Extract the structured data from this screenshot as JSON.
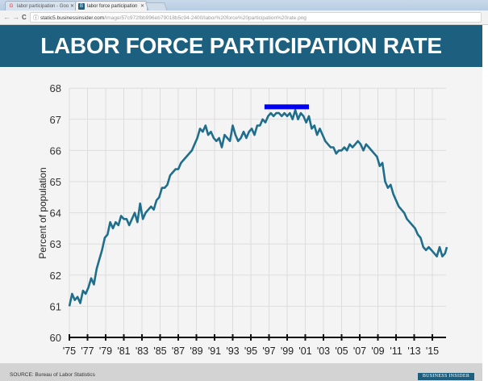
{
  "browser": {
    "tabs": [
      {
        "label": "labor participation - Goo",
        "favicon": "google-icon",
        "active": false
      },
      {
        "label": "labor force participation",
        "favicon": "bi-icon",
        "active": true
      }
    ],
    "address": {
      "host": "static5.businessinsider.com",
      "path": "/image/57c972fbb996eb79018b5c94-2400/labor%20force%20participation%20rate.png"
    },
    "nav": {
      "back": "←",
      "forward": "→",
      "reload": "C",
      "info": "ⓘ"
    }
  },
  "header": {
    "title": "LABOR FORCE PARTICIPATION RATE",
    "bg_color": "#1c5f7e"
  },
  "footer": {
    "source": "SOURCE: Bureau of Labor Statistics",
    "logo": "BUSINESS INSIDER"
  },
  "colors": {
    "line": "#1f6e8c",
    "highlight": "#0000ee",
    "grid": "#dddddd",
    "axis": "#111111"
  },
  "chart_data": {
    "type": "line",
    "title": "LABOR FORCE PARTICIPATION RATE",
    "xlabel": "",
    "ylabel": "Percent of population",
    "ylim": [
      60,
      68
    ],
    "xlim": [
      1975,
      2016.6
    ],
    "yticks": [
      "60",
      "61",
      "62",
      "63",
      "64",
      "65",
      "66",
      "67",
      "68"
    ],
    "xticks": [
      "'75",
      "'77",
      "'79",
      "'81",
      "'83",
      "'85",
      "'87",
      "'89",
      "'91",
      "'93",
      "'95",
      "'97",
      "'99",
      "'01",
      "'03",
      "'05",
      "'07",
      "'09",
      "'11",
      "'13",
      "'15"
    ],
    "grid": true,
    "annotation": {
      "type": "highlight-bar",
      "x_start": 1996.5,
      "x_end": 2001.4,
      "y": 67.4,
      "color": "#0000ee"
    },
    "series": [
      {
        "name": "Labor force participation rate",
        "x": [
          1975.0,
          1975.3,
          1975.6,
          1975.9,
          1976.2,
          1976.5,
          1976.8,
          1977.1,
          1977.4,
          1977.7,
          1978.0,
          1978.3,
          1978.6,
          1978.9,
          1979.2,
          1979.5,
          1979.8,
          1980.1,
          1980.4,
          1980.7,
          1981.0,
          1981.3,
          1981.6,
          1981.9,
          1982.2,
          1982.5,
          1982.8,
          1983.1,
          1983.4,
          1983.7,
          1984.0,
          1984.3,
          1984.6,
          1984.9,
          1985.2,
          1985.5,
          1985.8,
          1986.1,
          1986.4,
          1986.7,
          1987.0,
          1987.3,
          1987.6,
          1987.9,
          1988.2,
          1988.5,
          1988.8,
          1989.1,
          1989.4,
          1989.7,
          1990.0,
          1990.3,
          1990.6,
          1990.9,
          1991.2,
          1991.5,
          1991.8,
          1992.1,
          1992.4,
          1992.7,
          1993.0,
          1993.3,
          1993.6,
          1993.9,
          1994.2,
          1994.5,
          1994.8,
          1995.1,
          1995.4,
          1995.7,
          1996.0,
          1996.3,
          1996.6,
          1996.9,
          1997.2,
          1997.5,
          1997.8,
          1998.1,
          1998.4,
          1998.7,
          1999.0,
          1999.3,
          1999.6,
          1999.9,
          2000.2,
          2000.5,
          2000.8,
          2001.1,
          2001.4,
          2001.7,
          2002.0,
          2002.3,
          2002.6,
          2002.9,
          2003.2,
          2003.5,
          2003.8,
          2004.1,
          2004.4,
          2004.7,
          2005.0,
          2005.3,
          2005.6,
          2005.9,
          2006.2,
          2006.5,
          2006.8,
          2007.1,
          2007.4,
          2007.7,
          2008.0,
          2008.3,
          2008.6,
          2008.9,
          2009.2,
          2009.5,
          2009.8,
          2010.1,
          2010.4,
          2010.7,
          2011.0,
          2011.3,
          2011.6,
          2011.9,
          2012.2,
          2012.5,
          2012.8,
          2013.1,
          2013.4,
          2013.7,
          2014.0,
          2014.3,
          2014.6,
          2014.9,
          2015.2,
          2015.5,
          2015.8,
          2016.1,
          2016.4,
          2016.6
        ],
        "values": [
          61.0,
          61.4,
          61.2,
          61.3,
          61.1,
          61.5,
          61.4,
          61.6,
          61.9,
          61.7,
          62.2,
          62.5,
          62.8,
          63.2,
          63.3,
          63.7,
          63.5,
          63.7,
          63.6,
          63.9,
          63.8,
          63.8,
          63.6,
          63.8,
          64.0,
          63.7,
          64.3,
          63.8,
          64.0,
          64.1,
          64.2,
          64.1,
          64.4,
          64.5,
          64.8,
          64.8,
          64.9,
          65.2,
          65.3,
          65.4,
          65.4,
          65.6,
          65.7,
          65.8,
          65.9,
          66.0,
          66.2,
          66.4,
          66.7,
          66.6,
          66.8,
          66.5,
          66.6,
          66.4,
          66.3,
          66.4,
          66.1,
          66.5,
          66.4,
          66.3,
          66.8,
          66.5,
          66.3,
          66.4,
          66.6,
          66.4,
          66.6,
          66.7,
          66.5,
          66.8,
          66.8,
          67.0,
          66.9,
          67.1,
          67.2,
          67.1,
          67.2,
          67.2,
          67.1,
          67.2,
          67.1,
          67.2,
          67.0,
          67.3,
          67.0,
          67.2,
          67.1,
          66.9,
          67.1,
          66.7,
          66.8,
          66.5,
          66.7,
          66.5,
          66.3,
          66.2,
          66.1,
          66.1,
          65.9,
          66.0,
          66.0,
          66.1,
          66.0,
          66.2,
          66.1,
          66.2,
          66.3,
          66.2,
          66.0,
          66.2,
          66.1,
          66.0,
          65.9,
          65.8,
          65.5,
          65.6,
          65.0,
          64.8,
          64.9,
          64.6,
          64.4,
          64.2,
          64.1,
          64.0,
          63.8,
          63.7,
          63.6,
          63.5,
          63.3,
          63.2,
          62.9,
          62.8,
          62.9,
          62.8,
          62.7,
          62.6,
          62.9,
          62.6,
          62.7,
          62.9
        ],
        "color": "#1f6e8c"
      }
    ]
  }
}
